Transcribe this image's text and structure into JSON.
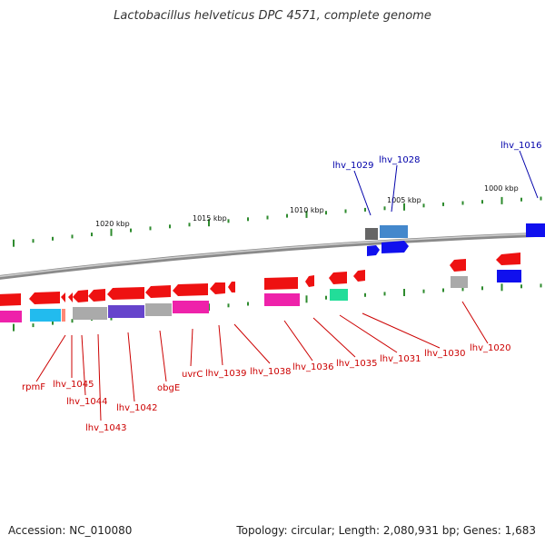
{
  "title": "Lactobacillus helveticus DPC 4571, complete genome",
  "footer": {
    "accession": "Accession: NC_010080",
    "topology": "Topology: circular; Length: 2,080,931 bp; Genes: 1,683"
  },
  "scale_labels": [
    "1020 kbp",
    "1015 kbp",
    "1010 kbp",
    "1005 kbp",
    "1000 kbp"
  ],
  "colors": {
    "backbone": "#8a8a8a",
    "tick": "#2e8b2e",
    "upper_label": "#0000aa",
    "lower_label": "#cc0000",
    "feature_red": "#ee1111",
    "feature_blue": "#1010ee",
    "feature_gray": "#aaaaaa",
    "feature_magenta": "#ee22aa",
    "feature_cyan": "#22bbee",
    "feature_purple": "#6644cc",
    "feature_green": "#22dd99",
    "feature_steel": "#4488cc",
    "feature_darkgray": "#666666"
  },
  "upper_labels": [
    "lhv_1029",
    "lhv_1028",
    "lhv_1016"
  ],
  "lower_labels": [
    "rpmF",
    "lhv_1045",
    "lhv_1044",
    "lhv_1043",
    "lhv_1042",
    "obgE",
    "uvrC",
    "lhv_1039",
    "lhv_1038",
    "lhv_1036",
    "lhv_1035",
    "lhv_1031",
    "lhv_1030",
    "lhv_1020"
  ]
}
